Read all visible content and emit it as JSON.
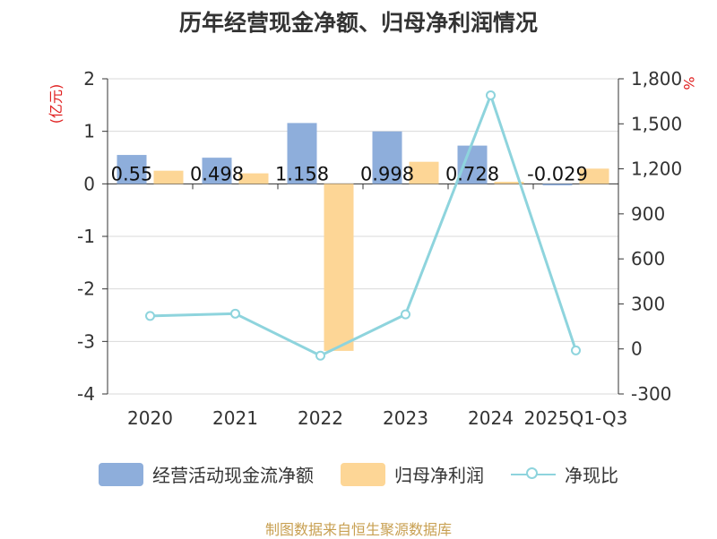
{
  "chart_data": {
    "type": "bar",
    "title": "历年经营现金净额、归母净利润情况",
    "categories": [
      "2020",
      "2021",
      "2022",
      "2023",
      "2024",
      "2025Q1-Q3"
    ],
    "y_left": {
      "label": "(亿元)",
      "ylim": [
        -4,
        2
      ],
      "ticks": [
        2,
        1,
        0,
        -1,
        -2,
        -3,
        -4
      ]
    },
    "y_right": {
      "label": "%",
      "ylim": [
        -300,
        1800
      ],
      "ticks": [
        "1,800",
        "1,500",
        "1,200",
        "900",
        "600",
        "300",
        "0",
        "-300"
      ]
    },
    "series": [
      {
        "name": "经营活动现金流净额",
        "type": "bar",
        "axis": "left",
        "color": "#8eaedb",
        "values": [
          0.55,
          0.498,
          1.158,
          0.998,
          0.728,
          -0.029
        ],
        "labels": [
          "0.55",
          "0.498",
          "1.158",
          "0.998",
          "0.728",
          "-0.029"
        ]
      },
      {
        "name": "归母净利润",
        "type": "bar",
        "axis": "left",
        "color": "#fdd696",
        "values": [
          0.25,
          0.2,
          -3.18,
          0.42,
          0.04,
          0.29
        ]
      },
      {
        "name": "净现比",
        "type": "line",
        "axis": "right",
        "color": "#8ed4dd",
        "values": [
          220,
          235,
          -45,
          230,
          1690,
          -10
        ]
      }
    ],
    "legend_position": "bottom",
    "grid": true
  },
  "source": "制图数据来自恒生聚源数据库"
}
